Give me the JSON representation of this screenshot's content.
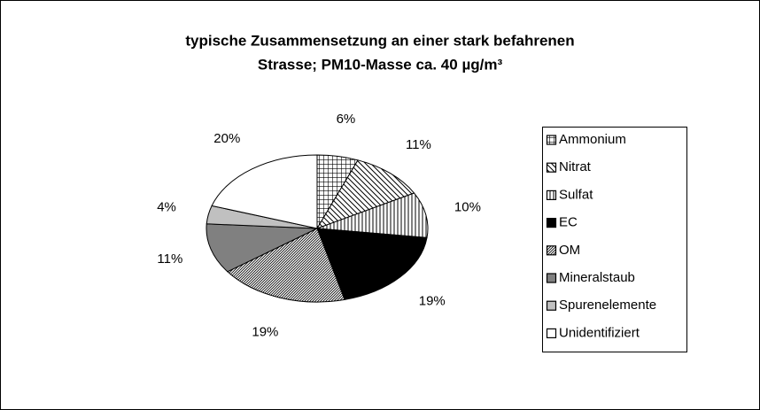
{
  "chart_data": {
    "type": "pie",
    "title": [
      "typische Zusammensetzung an einer stark befahrenen",
      "Strasse; PM10-Masse ca. 40 µg/m³"
    ],
    "categories": [
      "Ammonium",
      "Nitrat",
      "Sulfat",
      "EC",
      "OM",
      "Mineralstaub",
      "Spurenelemente",
      "Unidentifiziert"
    ],
    "values": [
      6,
      11,
      10,
      19,
      19,
      11,
      4,
      20
    ],
    "value_labels": [
      "6%",
      "11%",
      "10%",
      "19%",
      "19%",
      "11%",
      "4%",
      "20%"
    ],
    "colors": [
      "url(#p-grid)",
      "url(#p-diag)",
      "url(#p-vert)",
      "#000000",
      "url(#p-dense)",
      "#808080",
      "#c0c0c0",
      "#ffffff"
    ],
    "legend": "right"
  }
}
